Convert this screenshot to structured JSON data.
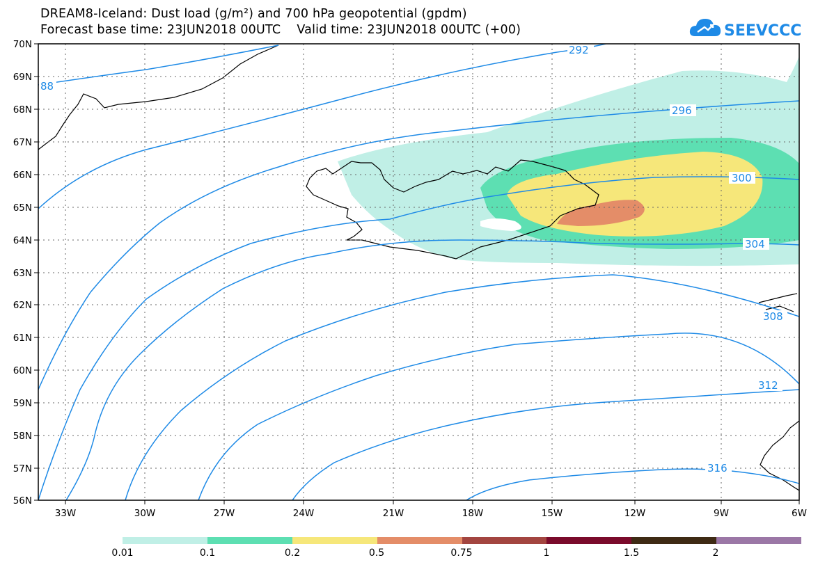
{
  "title": {
    "line1": "DREAM8-Iceland: Dust load (g/m²) and 700 hPa geopotential (gpdm)",
    "line2": "Forecast base time: 23JUN2018 00UTC    Valid time: 23JUN2018 00UTC (+00)"
  },
  "logo": {
    "text": "SEEVCCC",
    "icon": "cloud-arrow-icon",
    "color": "#1e8ae6"
  },
  "axes": {
    "lat_labels": [
      "70N",
      "69N",
      "68N",
      "67N",
      "66N",
      "65N",
      "64N",
      "63N",
      "62N",
      "61N",
      "60N",
      "59N",
      "58N",
      "57N",
      "56N"
    ],
    "lon_labels": [
      "33W",
      "30W",
      "27W",
      "24W",
      "21W",
      "18W",
      "15W",
      "12W",
      "9W",
      "6W"
    ]
  },
  "contours": {
    "color": "#1e8ae6",
    "labels": [
      "292",
      "296",
      "300",
      "304",
      "308",
      "312",
      "316",
      "88"
    ]
  },
  "legend": {
    "colors": [
      "#c0efe6",
      "#5ddfb2",
      "#f6e77a",
      "#e48d68",
      "#a34540",
      "#7a0a2b",
      "#3e2a14",
      "#9b77a6"
    ],
    "labels": [
      "0.01",
      "0.1",
      "0.2",
      "0.5",
      "0.75",
      "1",
      "1.5",
      "2"
    ]
  },
  "dust_colors": {
    "c001": "#c0efe6",
    "c01": "#5ddfb2",
    "c02": "#f6e77a",
    "c05": "#e48d68"
  }
}
